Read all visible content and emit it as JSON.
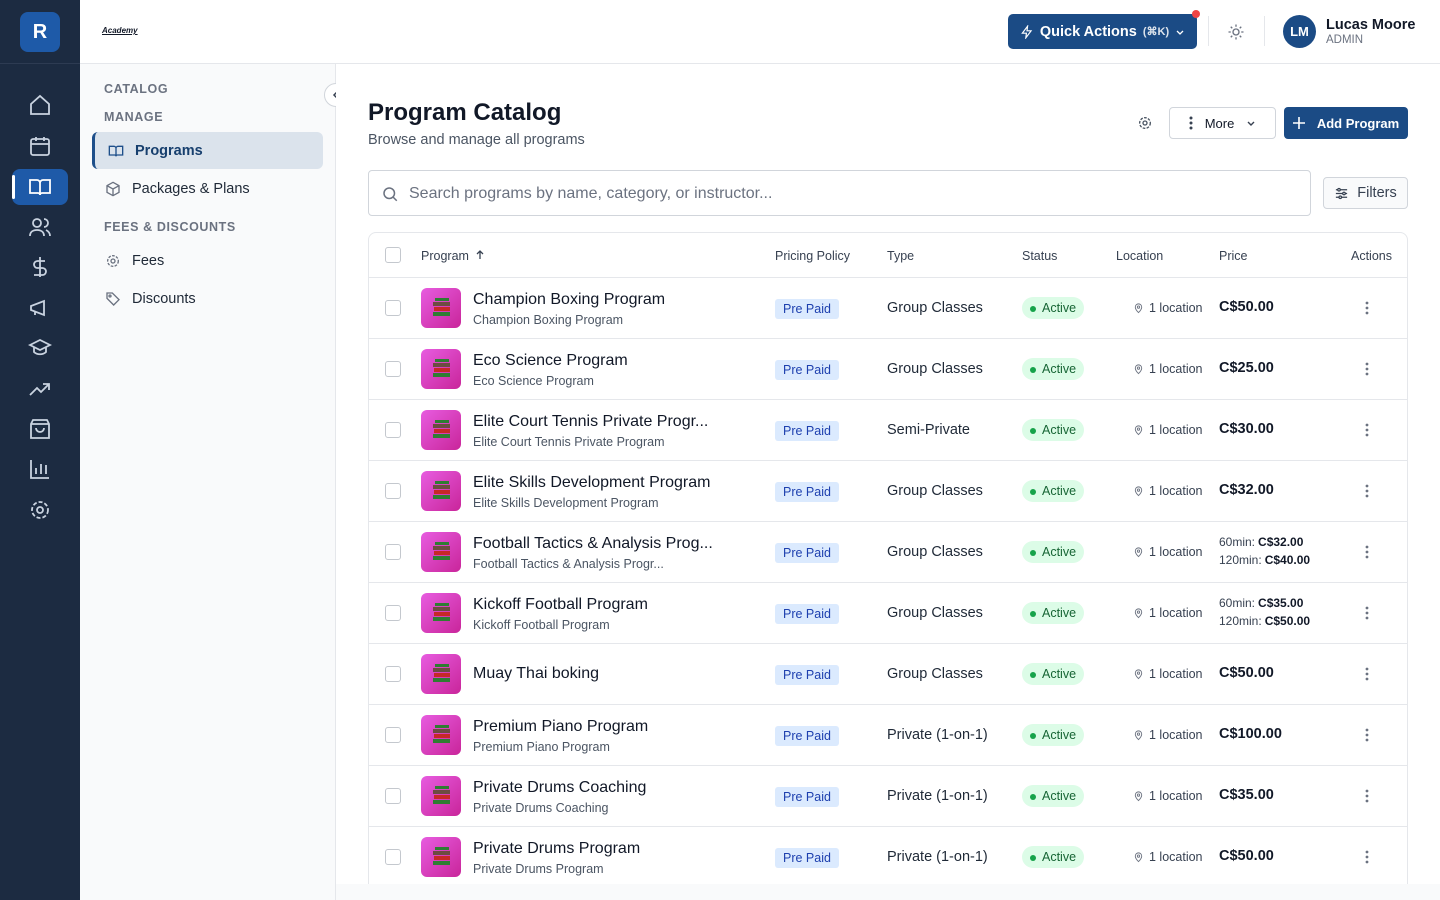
{
  "app": {
    "logo": "R",
    "brand": "Academy"
  },
  "header": {
    "quick_actions": "Quick Actions",
    "shortcut": "(⌘K)",
    "user": {
      "initials": "LM",
      "name": "Lucas Moore",
      "role": "ADMIN"
    }
  },
  "sidebar": {
    "title": "CATALOG",
    "sections": [
      {
        "label": "MANAGE",
        "items": [
          "Programs",
          "Packages & Plans"
        ]
      },
      {
        "label": "FEES & DISCOUNTS",
        "items": [
          "Fees",
          "Discounts"
        ]
      }
    ]
  },
  "page": {
    "title": "Program Catalog",
    "subtitle": "Browse and manage all programs",
    "more": "More",
    "add": "Add Program",
    "search_placeholder": "Search programs by name, category, or instructor...",
    "filters": "Filters"
  },
  "table": {
    "columns": [
      "Program",
      "Pricing Policy",
      "Type",
      "Status",
      "Location",
      "Price",
      "Actions"
    ],
    "rows": [
      {
        "name": "Champion Boxing Program",
        "subtitle": "Champion Boxing Program",
        "pricing": "Pre Paid",
        "type": "Group Classes",
        "status": "Active",
        "location": "1 location",
        "prices": [
          {
            "amount": "C$50.00"
          }
        ]
      },
      {
        "name": "Eco Science Program",
        "subtitle": "Eco Science Program",
        "pricing": "Pre Paid",
        "type": "Group Classes",
        "status": "Active",
        "location": "1 location",
        "prices": [
          {
            "amount": "C$25.00"
          }
        ]
      },
      {
        "name": "Elite Court Tennis Private Progr...",
        "subtitle": "Elite Court Tennis Private Program",
        "pricing": "Pre Paid",
        "type": "Semi-Private",
        "status": "Active",
        "location": "1 location",
        "prices": [
          {
            "amount": "C$30.00"
          }
        ]
      },
      {
        "name": "Elite Skills Development Program",
        "subtitle": "Elite Skills Development Program",
        "pricing": "Pre Paid",
        "type": "Group Classes",
        "status": "Active",
        "location": "1 location",
        "prices": [
          {
            "amount": "C$32.00"
          }
        ]
      },
      {
        "name": "Football Tactics & Analysis Prog...",
        "subtitle": "Football Tactics & Analysis Progr...",
        "pricing": "Pre Paid",
        "type": "Group Classes",
        "status": "Active",
        "location": "1 location",
        "prices": [
          {
            "duration": "60min:",
            "amount": "C$32.00"
          },
          {
            "duration": "120min:",
            "amount": "C$40.00"
          }
        ]
      },
      {
        "name": "Kickoff Football Program",
        "subtitle": "Kickoff Football Program",
        "pricing": "Pre Paid",
        "type": "Group Classes",
        "status": "Active",
        "location": "1 location",
        "prices": [
          {
            "duration": "60min:",
            "amount": "C$35.00"
          },
          {
            "duration": "120min:",
            "amount": "C$50.00"
          }
        ]
      },
      {
        "name": "Muay Thai boking",
        "pricing": "Pre Paid",
        "type": "Group Classes",
        "status": "Active",
        "location": "1 location",
        "prices": [
          {
            "amount": "C$50.00"
          }
        ]
      },
      {
        "name": "Premium Piano Program",
        "subtitle": "Premium Piano Program",
        "pricing": "Pre Paid",
        "type": "Private (1-on-1)",
        "status": "Active",
        "location": "1 location",
        "prices": [
          {
            "amount": "C$100.00"
          }
        ]
      },
      {
        "name": "Private Drums Coaching",
        "subtitle": "Private Drums Coaching",
        "pricing": "Pre Paid",
        "type": "Private (1-on-1)",
        "status": "Active",
        "location": "1 location",
        "prices": [
          {
            "amount": "C$35.00"
          }
        ]
      },
      {
        "name": "Private Drums Program",
        "subtitle": "Private Drums Program",
        "pricing": "Pre Paid",
        "type": "Private (1-on-1)",
        "status": "Active",
        "location": "1 location",
        "prices": [
          {
            "amount": "C$50.00"
          }
        ]
      }
    ]
  }
}
